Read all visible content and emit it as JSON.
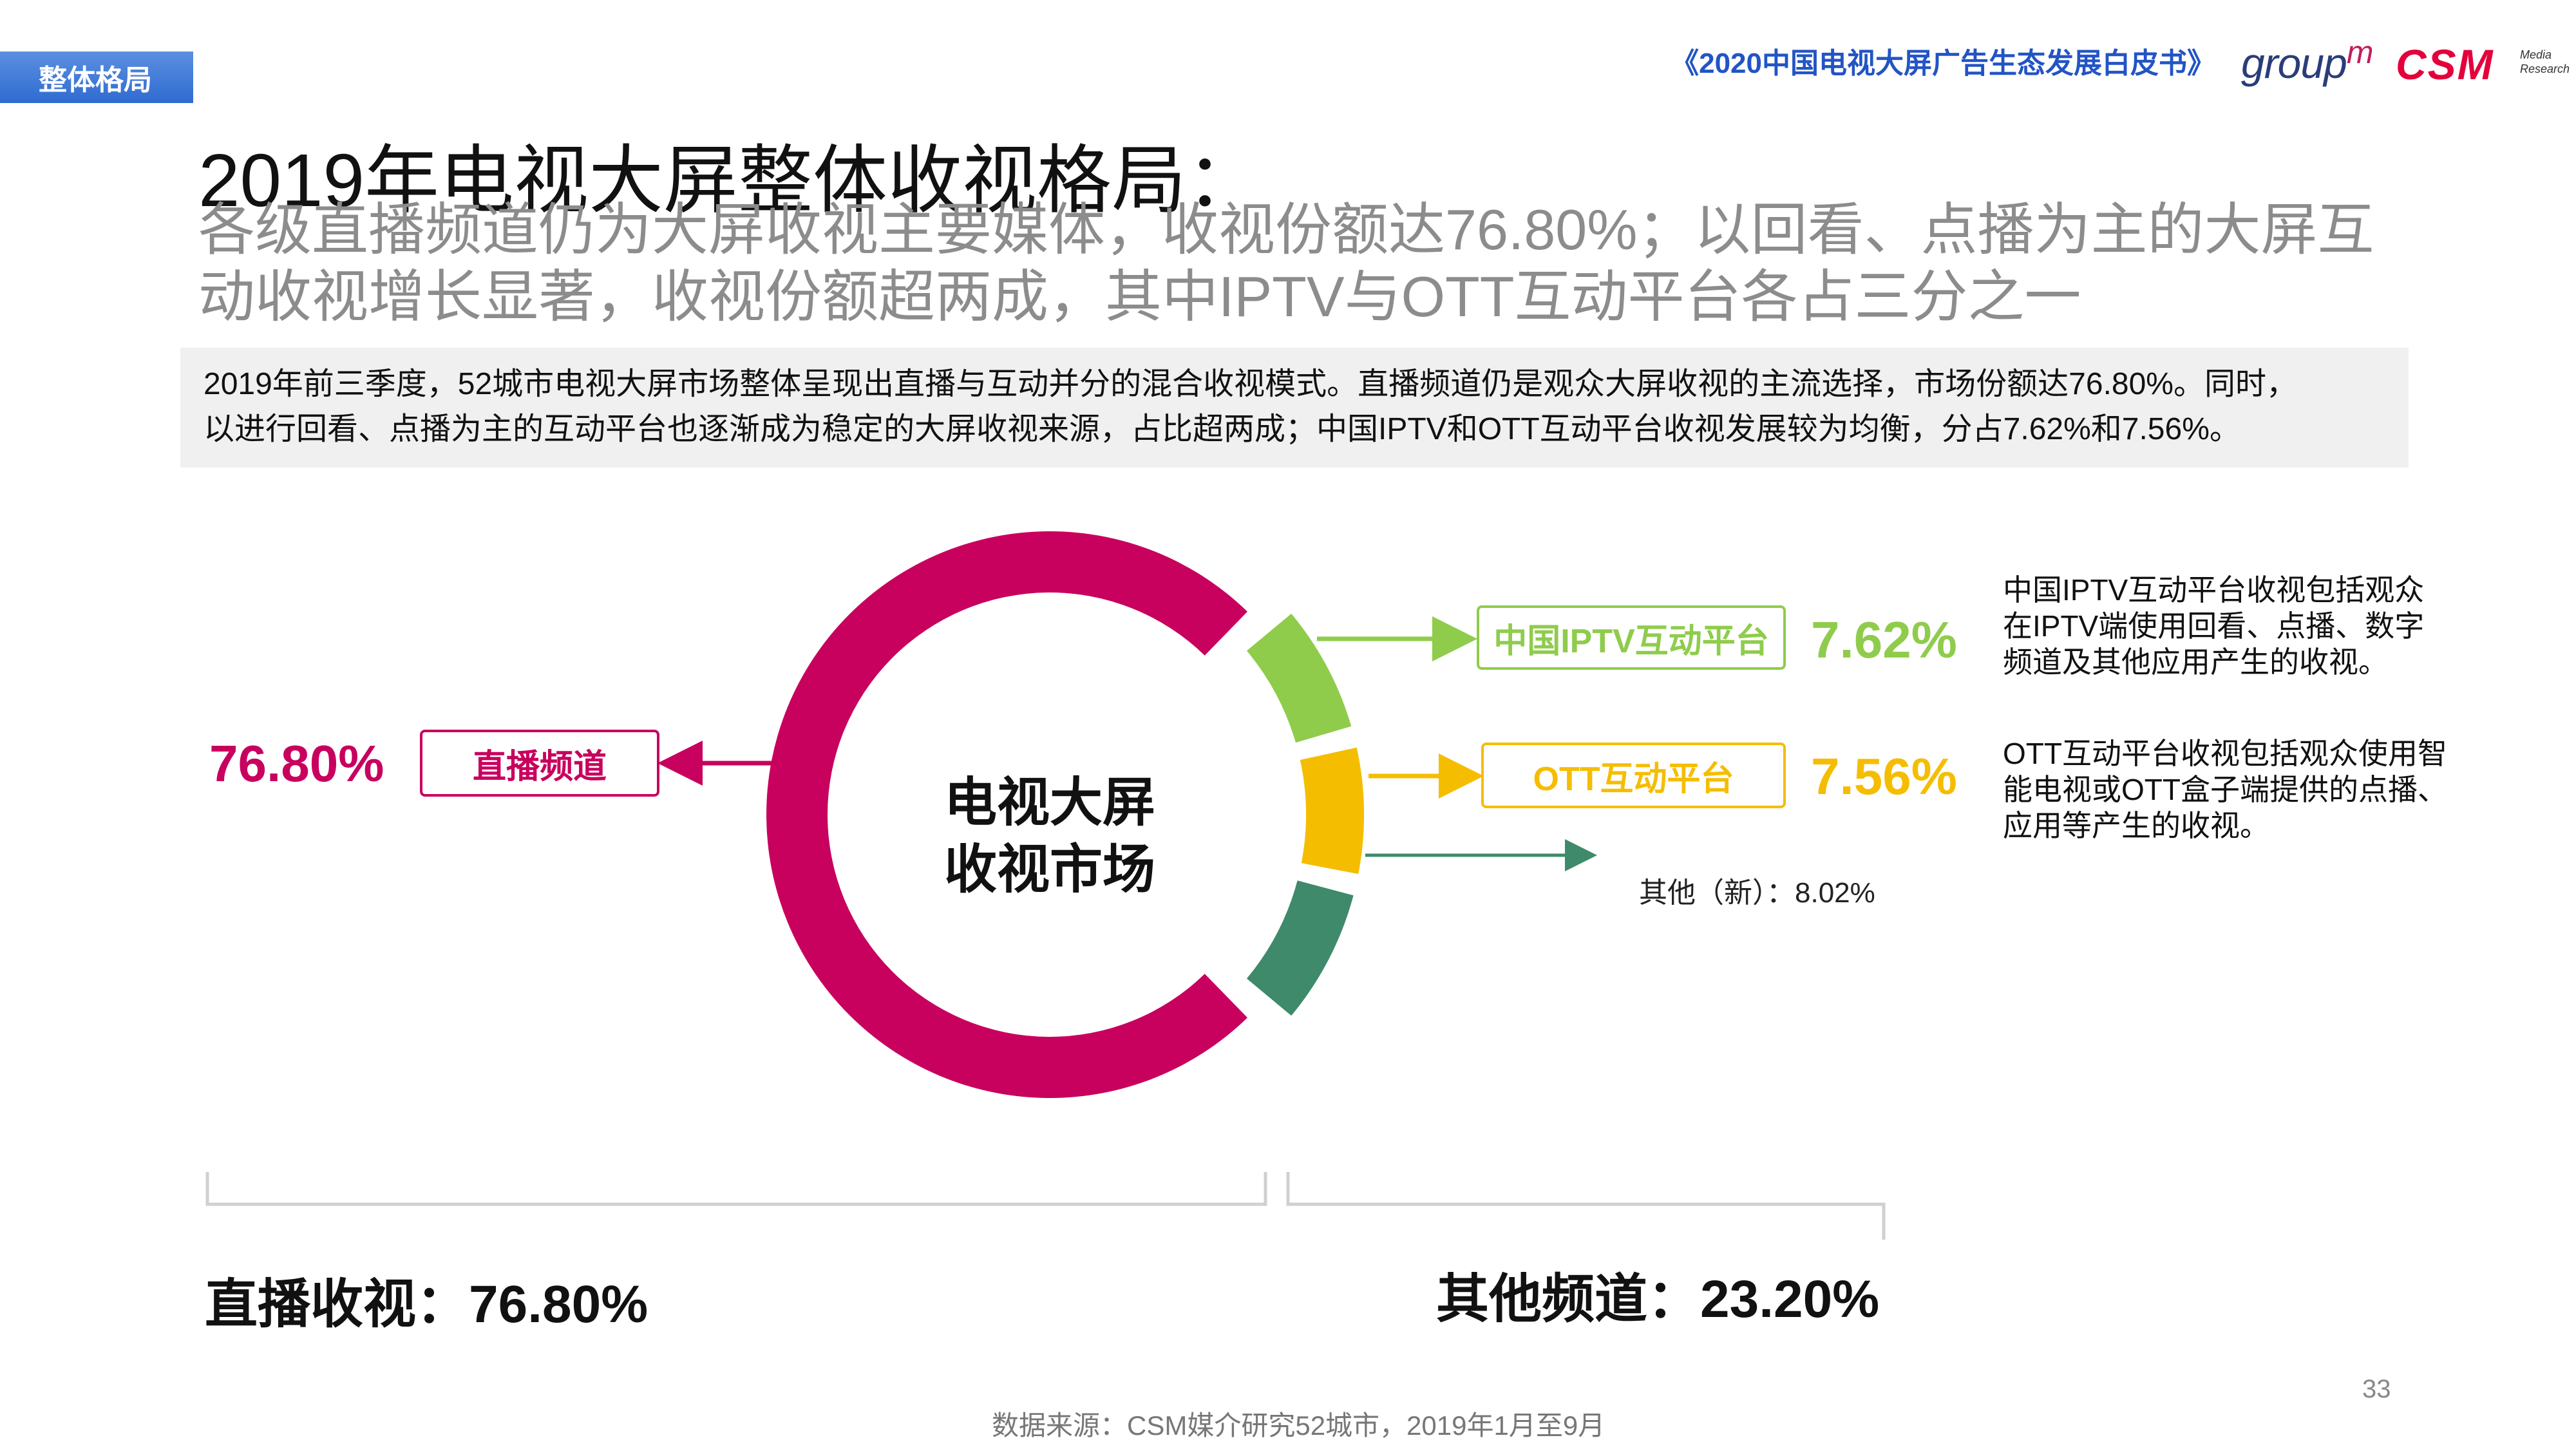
{
  "header": {
    "section_tag": "整体格局",
    "report_title": "《2020中国电视大屏广告生态发展白皮书》",
    "logo_groupm": "group",
    "logo_groupm_m": "m",
    "logo_csm": "CSM",
    "logo_csm_sub1": "Media",
    "logo_csm_sub2": "Research"
  },
  "title": {
    "main": "2019年电视大屏整体收视格局：",
    "sub": "各级直播频道仍为大屏收视主要媒体，收视份额达76.80%；以回看、点播为主的大屏互动收视增长显著，收视份额超两成，其中IPTV与OTT互动平台各占三分之一"
  },
  "summary": {
    "line1": "2019年前三季度，52城市电视大屏市场整体呈现出直播与互动并分的混合收视模式。直播频道仍是观众大屏收视的主流选择，市场份额达76.80%。同时，",
    "line2": "以进行回看、点播为主的互动平台也逐渐成为稳定的大屏收视来源，占比超两成；中国IPTV和OTT互动平台收视发展较为均衡，分占7.62%和7.56%。"
  },
  "chart_data": {
    "type": "pie",
    "title": "电视大屏收视市场",
    "center_label_line1": "电视大屏",
    "center_label_line2": "收视市场",
    "unit": "%",
    "slices": [
      {
        "name": "直播频道",
        "value": 76.8,
        "label": "76.80%",
        "color": "#c8005e"
      },
      {
        "name": "中国IPTV互动平台",
        "value": 7.62,
        "label": "7.62%",
        "color": "#8fcc4c"
      },
      {
        "name": "OTT互动平台",
        "value": 7.56,
        "label": "7.56%",
        "color": "#f5bd00"
      },
      {
        "name": "其他（新）",
        "value": 8.02,
        "label": "其他（新）：8.02%",
        "color": "#3e8a6a"
      }
    ]
  },
  "notes": {
    "iptv": "中国IPTV互动平台收视包括观众在IPTV端使用回看、点播、数字频道及其他应用产生的收视。",
    "ott": "OTT互动平台收视包括观众使用智能电视或OTT盒子端提供的点播、应用等产生的收视。"
  },
  "bottom": {
    "live_total": "直播收视：76.80%",
    "other_total": "其他频道：23.20%"
  },
  "footer": {
    "page_number": "33",
    "source": "数据来源：CSM媒介研究52城市，2019年1月至9月"
  }
}
